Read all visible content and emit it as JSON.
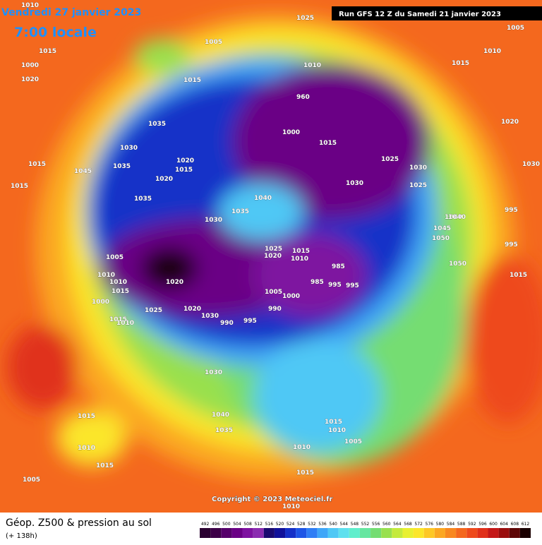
{
  "header": {
    "date": "Vendredi 27 janvier 2023",
    "time": "7:00 locale",
    "run": "Run GFS 12 Z du Samedi 21 janvier 2023"
  },
  "map": {
    "copyright": "Copyright © 2023 Meteociel.fr",
    "pressure_labels": [
      "1010",
      "1015",
      "1020",
      "1015",
      "1025",
      "1005",
      "1010",
      "1000",
      "1010",
      "1005",
      "1015",
      "1035",
      "1030",
      "1015",
      "1015",
      "1045",
      "1035",
      "1020",
      "1015",
      "1020",
      "1035",
      "1040",
      "1035",
      "1030",
      "1040",
      "1025",
      "1020",
      "1015",
      "1010",
      "985",
      "960",
      "1000",
      "1015",
      "1025",
      "1030",
      "1030",
      "1025",
      "1020",
      "1030",
      "995",
      "1040",
      "1045",
      "1050",
      "1050",
      "995",
      "1015",
      "1005",
      "1010",
      "1010",
      "1015",
      "1000",
      "995",
      "1020",
      "1020",
      "1030",
      "990",
      "995",
      "990",
      "985",
      "995",
      "1005",
      "1000",
      "1025",
      "1030",
      "1015",
      "1010",
      "1040",
      "1035",
      "1010",
      "1015",
      "1005",
      "1010",
      "1015",
      "1005",
      "1015",
      "1010",
      "1015",
      "1010"
    ]
  },
  "footer": {
    "title": "Géop. Z500 & pression au sol",
    "subtitle": "(+ 138h)"
  },
  "scale": {
    "labels": [
      492,
      496,
      500,
      504,
      508,
      512,
      516,
      520,
      524,
      528,
      532,
      536,
      540,
      544,
      548,
      552,
      556,
      560,
      564,
      568,
      572,
      576,
      580,
      584,
      588,
      592,
      596,
      600,
      604,
      608,
      612
    ],
    "colors": [
      "#2a0030",
      "#3d0048",
      "#55006a",
      "#6a0085",
      "#7e12a0",
      "#8a2cb0",
      "#1a0a70",
      "#11119a",
      "#1530c8",
      "#1e55e6",
      "#2f7ef5",
      "#3fa6f8",
      "#4fc8f5",
      "#5fe0ee",
      "#60eecc",
      "#66e6a0",
      "#74dd72",
      "#98e04e",
      "#c4ea3c",
      "#e8f030",
      "#fbe62a",
      "#fdc826",
      "#fba722",
      "#f88820",
      "#f4681e",
      "#ee4a1c",
      "#e0301a",
      "#c41818",
      "#9a0e0e",
      "#5e0606",
      "#1a0000"
    ]
  }
}
